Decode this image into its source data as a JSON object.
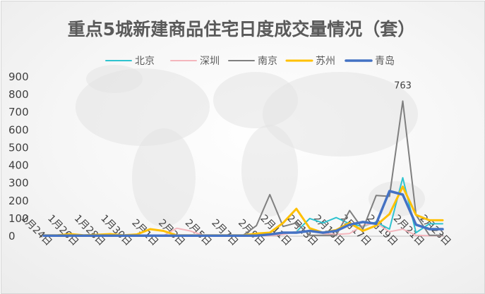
{
  "chart_data": {
    "type": "line",
    "title": "重点5城新建商品住宅日度成交量情况（套）",
    "xlabel": "",
    "ylabel": "",
    "ylim": [
      0,
      900
    ],
    "yticks": [
      "0",
      "100",
      "200",
      "300",
      "400",
      "500",
      "600",
      "700",
      "800",
      "900"
    ],
    "x": [
      "1月24日",
      "1月25日",
      "1月26日",
      "1月27日",
      "1月28日",
      "1月29日",
      "1月30日",
      "1月31日",
      "2月1日",
      "2月2日",
      "2月3日",
      "2月4日",
      "2月5日",
      "2月6日",
      "2月7日",
      "2月8日",
      "2月9日",
      "2月10日",
      "2月11日",
      "2月12日",
      "2月13日",
      "2月14日",
      "2月15日",
      "2月16日",
      "2月17日",
      "2月18日",
      "2月19日",
      "2月20日",
      "2月21日",
      "2月22日",
      "2月23日"
    ],
    "xtick_labels": [
      "1月24日",
      "1月26日",
      "1月28日",
      "1月30日",
      "2月1日",
      "2月3日",
      "2月5日",
      "2月7日",
      "2月9日",
      "2月11日",
      "2月13日",
      "2月15日",
      "2月17日",
      "2月19日",
      "2月21日",
      "2月23日"
    ],
    "legend_position": "top",
    "grid": false,
    "annotations": [
      {
        "series": "南京",
        "x": "2月20日",
        "text": "763"
      }
    ],
    "series": [
      {
        "name": "北京",
        "color": "#2fc3cf",
        "width": 2,
        "values": [
          3,
          3,
          3,
          3,
          3,
          3,
          3,
          3,
          3,
          3,
          3,
          3,
          3,
          3,
          3,
          3,
          3,
          5,
          15,
          25,
          100,
          75,
          105,
          70,
          55,
          80,
          40,
          330,
          20,
          70,
          70
        ]
      },
      {
        "name": "深圳",
        "color": "#f4b6bd",
        "width": 2,
        "values": [
          3,
          3,
          3,
          3,
          3,
          3,
          3,
          3,
          3,
          3,
          45,
          30,
          5,
          3,
          3,
          3,
          3,
          3,
          10,
          25,
          30,
          15,
          10,
          15,
          60,
          75,
          25,
          40,
          5,
          3,
          3
        ]
      },
      {
        "name": "南京",
        "color": "#7f7f7f",
        "width": 2,
        "values": [
          5,
          5,
          5,
          5,
          5,
          5,
          5,
          5,
          5,
          5,
          5,
          5,
          5,
          5,
          5,
          5,
          60,
          235,
          55,
          75,
          5,
          5,
          5,
          145,
          40,
          230,
          225,
          763,
          120,
          5,
          5
        ]
      },
      {
        "name": "苏州",
        "color": "#ffc000",
        "width": 3,
        "values": [
          5,
          5,
          12,
          5,
          8,
          12,
          5,
          10,
          40,
          30,
          5,
          5,
          5,
          5,
          5,
          5,
          15,
          20,
          75,
          155,
          45,
          20,
          35,
          75,
          30,
          60,
          125,
          280,
          120,
          90,
          90
        ]
      },
      {
        "name": "青岛",
        "color": "#4472c4",
        "width": 3.5,
        "values": [
          3,
          3,
          3,
          3,
          3,
          3,
          3,
          3,
          3,
          3,
          3,
          3,
          3,
          3,
          3,
          3,
          3,
          10,
          20,
          20,
          30,
          20,
          30,
          65,
          80,
          70,
          255,
          235,
          65,
          40,
          40
        ]
      }
    ]
  }
}
